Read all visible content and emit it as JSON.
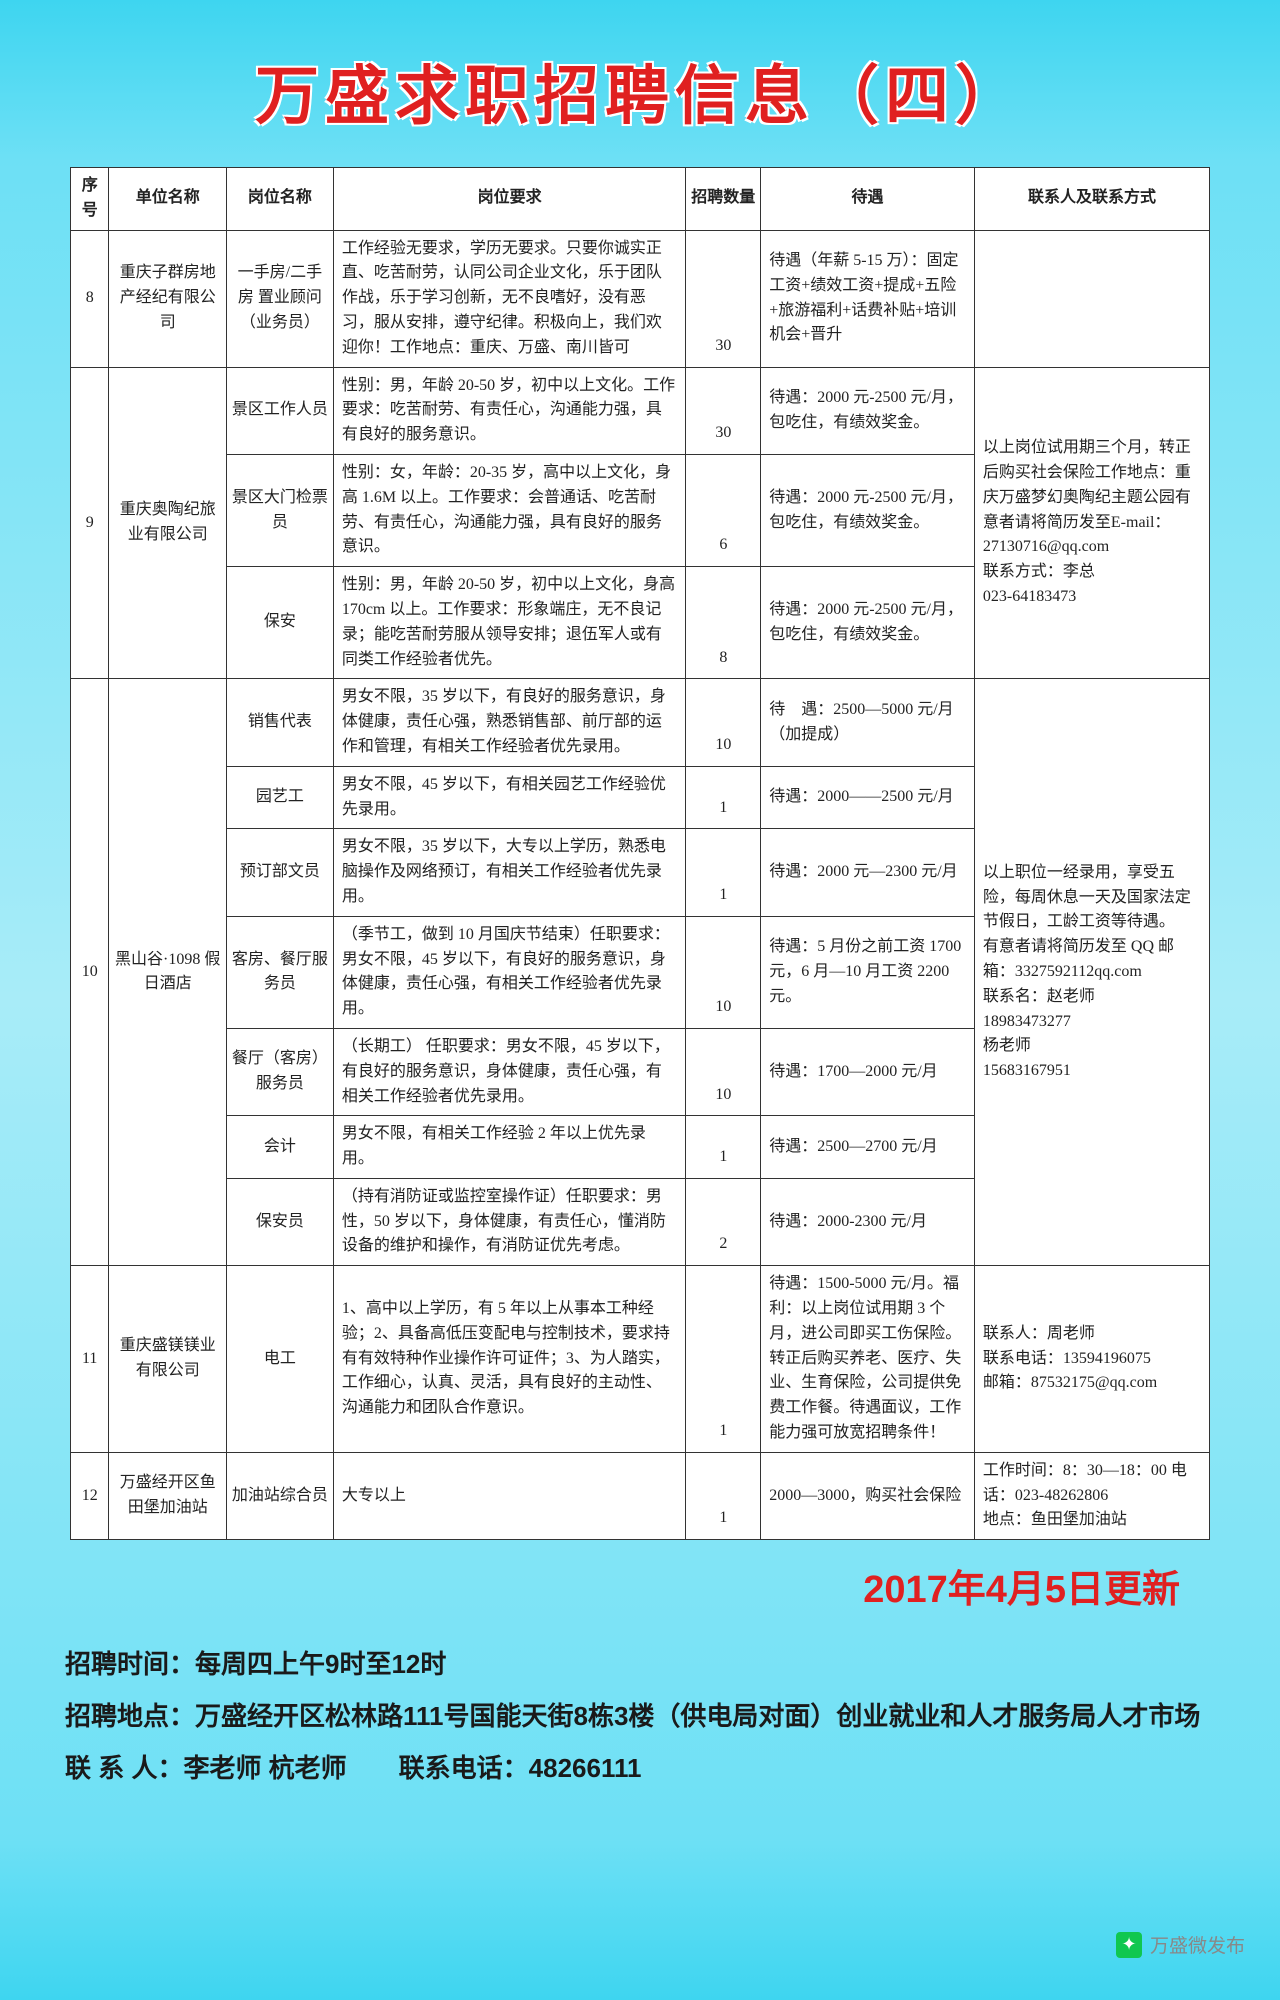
{
  "title": "万盛求职招聘信息（四）",
  "headers": {
    "seq": "序号",
    "unit": "单位名称",
    "pos": "岗位名称",
    "req": "岗位要求",
    "num": "招聘数量",
    "treat": "待遇",
    "contact": "联系人及联系方式"
  },
  "rows": [
    {
      "seq": "8",
      "unit": "重庆子群房地产经纪有限公司",
      "positions": [
        {
          "pos": "一手房/二手房 置业顾问（业务员）",
          "req": "工作经验无要求，学历无要求。只要你诚实正直、吃苦耐劳，认同公司企业文化，乐于团队作战，乐于学习创新，无不良嗜好，没有恶习，服从安排，遵守纪律。积极向上，我们欢迎你！工作地点：重庆、万盛、南川皆可",
          "num": "30",
          "treat": "待遇（年薪 5-15 万）：固定工资+绩效工资+提成+五险+旅游福利+话费补贴+培训机会+晋升"
        }
      ],
      "contact": ""
    },
    {
      "seq": "9",
      "unit": "重庆奥陶纪旅业有限公司",
      "positions": [
        {
          "pos": "景区工作人员",
          "req": "性别：男，年龄 20-50 岁，初中以上文化。工作要求：吃苦耐劳、有责任心，沟通能力强，具有良好的服务意识。",
          "num": "30",
          "treat": "待遇：2000 元-2500 元/月，包吃住，有绩效奖金。"
        },
        {
          "pos": "景区大门检票员",
          "req": "性别：女，年龄：20-35 岁，高中以上文化，身高 1.6M 以上。工作要求：会普通话、吃苦耐劳、有责任心，沟通能力强，具有良好的服务意识。",
          "num": "6",
          "treat": "待遇：2000 元-2500 元/月，包吃住，有绩效奖金。"
        },
        {
          "pos": "保安",
          "req": "性别：男，年龄 20-50 岁，初中以上文化，身高 170cm 以上。工作要求：形象端庄，无不良记录；能吃苦耐劳服从领导安排；退伍军人或有同类工作经验者优先。",
          "num": "8",
          "treat": "待遇：2000 元-2500 元/月，包吃住，有绩效奖金。"
        }
      ],
      "contact": "以上岗位试用期三个月，转正后购买社会保险工作地点：重庆万盛梦幻奥陶纪主题公园有意者请将简历发至E-mail：27130716@qq.com\n联系方式：李总\n023-64183473"
    },
    {
      "seq": "10",
      "unit": "黑山谷·1098 假日酒店",
      "positions": [
        {
          "pos": "销售代表",
          "req": "男女不限，35 岁以下，有良好的服务意识，身体健康，责任心强，熟悉销售部、前厅部的运作和管理，有相关工作经验者优先录用。",
          "num": "10",
          "treat": "待　遇：2500—5000 元/月（加提成）"
        },
        {
          "pos": "园艺工",
          "req": "男女不限，45 岁以下，有相关园艺工作经验优先录用。",
          "num": "1",
          "treat": "待遇：2000——2500 元/月"
        },
        {
          "pos": "预订部文员",
          "req": "男女不限，35 岁以下，大专以上学历，熟悉电脑操作及网络预订，有相关工作经验者优先录用。",
          "num": "1",
          "treat": "待遇：2000 元—2300 元/月"
        },
        {
          "pos": "客房、餐厅服务员",
          "req": "（季节工，做到 10 月国庆节结束）任职要求：男女不限，45 岁以下，有良好的服务意识，身体健康，责任心强，有相关工作经验者优先录用。",
          "num": "10",
          "treat": "待遇：5 月份之前工资 1700 元，6 月—10 月工资 2200 元。"
        },
        {
          "pos": "餐厅（客房）服务员",
          "req": "（长期工）\n任职要求：男女不限，45 岁以下，有良好的服务意识，身体健康，责任心强，有相关工作经验者优先录用。",
          "num": "10",
          "treat": "待遇：1700—2000 元/月"
        },
        {
          "pos": "会计",
          "req": "男女不限，有相关工作经验 2 年以上优先录用。",
          "num": "1",
          "treat": "待遇：2500—2700 元/月"
        },
        {
          "pos": "保安员",
          "req": "（持有消防证或监控室操作证）任职要求：男性，50 岁以下，身体健康，有责任心，懂消防设备的维护和操作，有消防证优先考虑。",
          "num": "2",
          "treat": "待遇：2000-2300 元/月"
        }
      ],
      "contact": "以上职位一经录用，享受五险，每周休息一天及国家法定节假日，工龄工资等待遇。\n有意者请将简历发至 QQ 邮箱：3327592112qq.com\n联系名：赵老师\n18983473277\n杨老师\n15683167951"
    },
    {
      "seq": "11",
      "unit": "重庆盛镁镁业有限公司",
      "positions": [
        {
          "pos": "电工",
          "req": "1、高中以上学历，有 5 年以上从事本工种经验；2、具备高低压变配电与控制技术，要求持有有效特种作业操作许可证件；3、为人踏实，工作细心，认真、灵活，具有良好的主动性、沟通能力和团队合作意识。",
          "num": "1",
          "treat": "待遇：1500-5000 元/月。福利：以上岗位试用期 3 个月，进公司即买工伤保险。转正后购买养老、医疗、失业、生育保险，公司提供免费工作餐。待遇面议，工作能力强可放宽招聘条件！"
        }
      ],
      "contact": "联系人：周老师\n联系电话：13594196075\n邮箱：87532175@qq.com"
    },
    {
      "seq": "12",
      "unit": "万盛经开区鱼田堡加油站",
      "positions": [
        {
          "pos": "加油站综合员",
          "req": "大专以上",
          "num": "1",
          "treat": "2000—3000，购买社会保险"
        }
      ],
      "contact": "工作时间：8：30—18：00 电话：023-48262806\n地点：鱼田堡加油站"
    }
  ],
  "update": "2017年4月5日更新",
  "footer": {
    "time": "招聘时间：每周四上午9时至12时",
    "addr": "招聘地点：万盛经开区松林路111号国能天街8栋3楼（供电局对面）创业就业和人才服务局人才市场",
    "contact": "联 系 人：李老师 杭老师　　联系电话：48266111"
  },
  "watermark": "万盛微发布"
}
